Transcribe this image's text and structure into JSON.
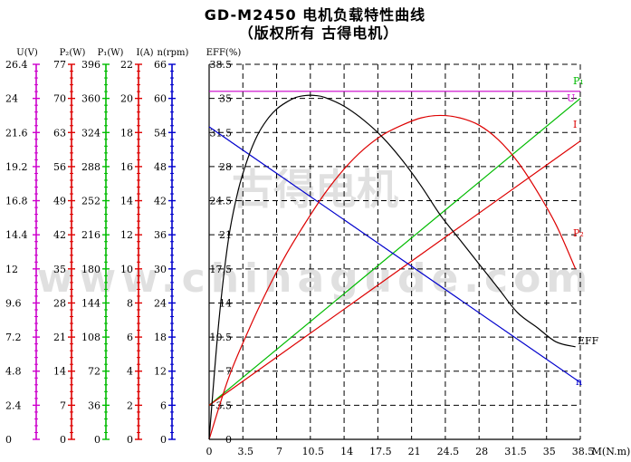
{
  "title": "GD-M2450 电机负载特性曲线",
  "subtitle": "（版权所有  古得电机）",
  "watermark": {
    "cn": "古得电机",
    "url": "www.chinagude.com"
  },
  "colors": {
    "U": "#cc00cc",
    "P2": "#dd0000",
    "P1": "#00bb00",
    "I": "#dd0000",
    "n": "#0000cc",
    "EFF": "#000000",
    "grid": "#000000"
  },
  "chart_data": {
    "type": "line",
    "xlabel": "M(N.m)",
    "xlim": [
      0,
      38.5
    ],
    "x_ticks": [
      "0",
      "3.5",
      "7",
      "10.5",
      "14",
      "17.5",
      "21",
      "24.5",
      "28",
      "31.5",
      "35",
      "38.5"
    ],
    "axes": [
      {
        "key": "U",
        "header": "U(V)",
        "ticks": [
          "26.4",
          "24",
          "21.6",
          "19.2",
          "16.8",
          "14.4",
          "12",
          "9.6",
          "7.2",
          "4.8",
          "2.4",
          "0"
        ]
      },
      {
        "key": "P2",
        "header": "P₂(W)",
        "ticks": [
          "77",
          "70",
          "63",
          "56",
          "49",
          "42",
          "35",
          "28",
          "21",
          "14",
          "7",
          "0"
        ]
      },
      {
        "key": "P1",
        "header": "P₁(W)",
        "ticks": [
          "396",
          "360",
          "324",
          "288",
          "252",
          "216",
          "180",
          "144",
          "108",
          "72",
          "36",
          "0"
        ]
      },
      {
        "key": "I",
        "header": "I(A)",
        "ticks": [
          "22",
          "20",
          "18",
          "16",
          "14",
          "12",
          "10",
          "8",
          "6",
          "4",
          "2",
          "0"
        ]
      },
      {
        "key": "n",
        "header": "n(rpm)",
        "ticks": [
          "66",
          "60",
          "54",
          "48",
          "42",
          "36",
          "30",
          "24",
          "18",
          "12",
          "6",
          "0"
        ]
      },
      {
        "key": "EFF",
        "header": "EFF(%)",
        "ticks": [
          "38.5",
          "35",
          "31.5",
          "28",
          "24.5",
          "21",
          "17.5",
          "14",
          "10.5",
          "7",
          "3.5",
          "0"
        ]
      }
    ],
    "series": [
      {
        "name": "U",
        "label": "U",
        "color": "#cc00cc",
        "x": [
          0,
          38.5
        ],
        "y": [
          24.5,
          24.5
        ],
        "scale_max": 26.4
      },
      {
        "name": "P1",
        "label": "P₁",
        "color": "#00bb00",
        "x": [
          0,
          38.5
        ],
        "y": [
          36,
          360
        ],
        "scale_max": 396
      },
      {
        "name": "I",
        "label": "I",
        "color": "#dd0000",
        "x": [
          0,
          38.5
        ],
        "y": [
          2,
          17.5
        ],
        "scale_max": 22
      },
      {
        "name": "n",
        "label": "n",
        "color": "#0000cc",
        "x": [
          0,
          38.5
        ],
        "y": [
          55,
          10
        ],
        "scale_max": 66
      },
      {
        "name": "P2",
        "label": "P₂",
        "color": "#dd0000",
        "x": [
          0,
          2,
          4,
          6,
          8,
          10,
          12,
          14,
          16,
          18,
          20,
          22,
          24,
          26,
          28,
          30,
          32,
          34,
          36,
          38
        ],
        "y": [
          0,
          12.5,
          22,
          30.5,
          38,
          44.5,
          50.5,
          55.5,
          59.5,
          62.5,
          64.5,
          66,
          66.5,
          66,
          64.5,
          61.5,
          57,
          51,
          44,
          35
        ],
        "scale_max": 77
      },
      {
        "name": "EFF",
        "label": "EFF",
        "color": "#000000",
        "x": [
          0,
          1,
          2,
          3,
          4,
          5,
          6,
          7,
          8,
          9,
          10,
          11,
          12,
          14,
          16,
          18,
          20,
          22,
          24,
          26,
          28,
          30,
          32,
          34,
          36,
          38
        ],
        "y": [
          0,
          12,
          20.5,
          25.5,
          28.8,
          31.2,
          32.8,
          33.9,
          34.6,
          35.1,
          35.3,
          35.3,
          35.1,
          34.2,
          32.8,
          31,
          28.7,
          26,
          23,
          20.5,
          18,
          15.5,
          13,
          11.5,
          10,
          9.5
        ],
        "scale_max": 38.5
      }
    ]
  }
}
